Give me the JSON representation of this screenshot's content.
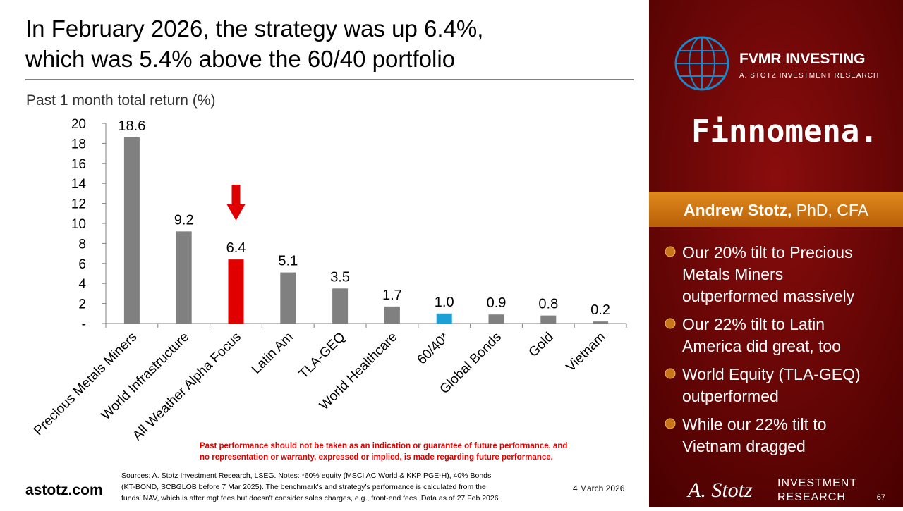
{
  "slide": {
    "title": [
      "In February 2026, the strategy was up 6.4%,",
      "which was 5.4% above the 60/40 portfolio"
    ],
    "brand": "FVMR INVESTING",
    "brand_sub": "A. STOTZ INVESTMENT RESEARCH",
    "partner": "Finnomena.",
    "presenter": "Andrew Stotz,",
    "credentials": "PhD, CFA",
    "bullets": [
      [
        "Our 20% tilt to Precious",
        "Metals Miners",
        "outperformed massively"
      ],
      [
        "Our 22% tilt to Latin",
        "America did great, too"
      ],
      [
        "World Equity (TLA-GEQ)",
        "outperformed"
      ],
      [
        "While our 22% tilt to",
        "Vietnam dragged"
      ]
    ],
    "disclaimer": [
      "Past performance should not be taken as an indication or guarantee of future performance, and",
      "no representation or warranty, expressed or implied, is made regarding future performance."
    ],
    "sources": [
      "Sources: A. Stotz Investment Research, LSEG. Notes: *60% equity (MSCI AC World & KKP PGE-H), 40% Bonds",
      "(KT-BOND, SCBGLOB before 7 Mar 2025). The benchmark's and strategy's performance is calculated from the",
      "funds' NAV, which is after mgt fees but doesn't consider sales charges, e.g., front-end fees. Data as of 27 Feb 2026."
    ],
    "website": "astotz.com",
    "date": "4 March 2026",
    "logo_script": "A. Stotz",
    "logo_text": [
      "INVESTMENT",
      "RESEARCH"
    ],
    "page": "67"
  },
  "chart_data": {
    "type": "bar",
    "title": "Past 1 month total return (%)",
    "categories": [
      "Precious Metals Miners",
      "World Infrastructure",
      "All Weather Alpha Focus",
      "Latin Am",
      "TLA-GEQ",
      "World Healthcare",
      "60/40*",
      "Global Bonds",
      "Gold",
      "Vietnam"
    ],
    "values": [
      18.6,
      9.2,
      6.4,
      5.1,
      3.5,
      1.7,
      1.0,
      0.9,
      0.8,
      0.2
    ],
    "value_labels": [
      "18.6",
      "9.2",
      "6.4",
      "5.1",
      "3.5",
      "1.7",
      "1.0",
      "0.9",
      "0.8",
      "0.2"
    ],
    "colors": [
      "#808080",
      "#808080",
      "#e00000",
      "#808080",
      "#808080",
      "#808080",
      "#1ba1d6",
      "#808080",
      "#808080",
      "#808080"
    ],
    "ylim": [
      0,
      20
    ],
    "yticks": [
      {
        "value": 0,
        "label": "-"
      },
      2,
      4,
      6,
      8,
      10,
      12,
      14,
      16,
      18,
      20
    ]
  }
}
